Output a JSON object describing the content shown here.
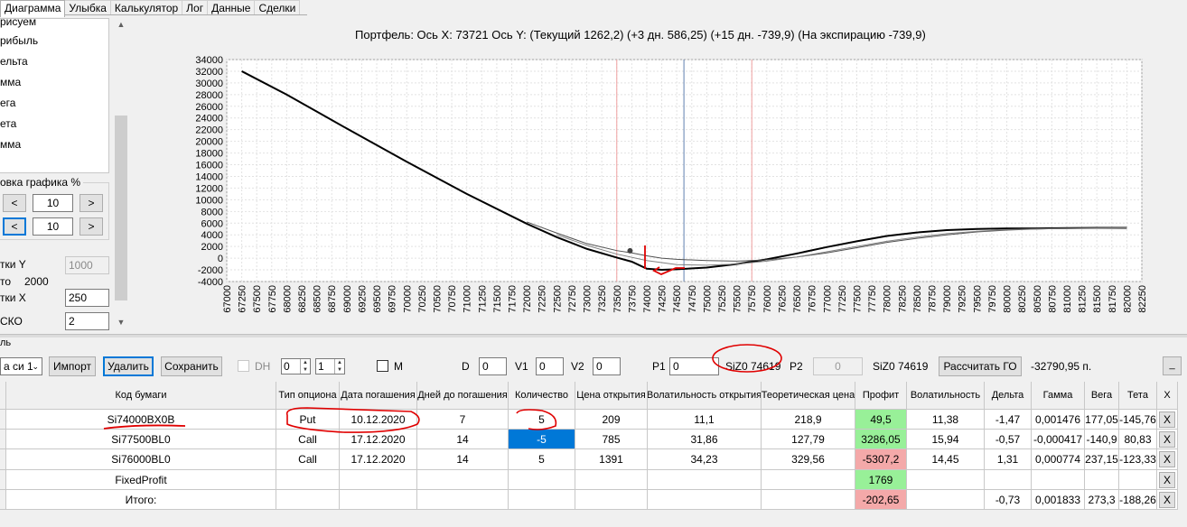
{
  "tabs": [
    "Диаграмма",
    "Улыбка",
    "Калькулятор",
    "Лог",
    "Данные",
    "Сделки"
  ],
  "active_tab": "Диаграмма",
  "left_panel": {
    "series_items": [
      "рисуем",
      "рибыль",
      "ельта",
      "мма",
      "ега",
      "ета",
      "мма"
    ],
    "scale_group_title": "овка графика %",
    "scale_prev": "<",
    "scale_next": ">",
    "scale_value_1": "10",
    "scale_value_2": "10",
    "y_step_label": "тки Y",
    "y_step_value": "1000",
    "from_label": "то",
    "from_value": "2000",
    "x_step_label": "тки X",
    "x_step_value": "250",
    "sko_label": "СКО",
    "sko_value": "2"
  },
  "chart_title": "Портфель: Ось X: 73721 Ось Y:  (Текущий 1262,2)  (+3 дн. 586,25)  (+15 дн. -739,9)  (На экспирацию -739,9)",
  "chart_data": {
    "type": "line",
    "xlim": [
      67000,
      82250
    ],
    "ylim": [
      -4000,
      34000
    ],
    "y_ticks": [
      -4000,
      -2000,
      0,
      2000,
      4000,
      6000,
      8000,
      10000,
      12000,
      14000,
      16000,
      18000,
      20000,
      22000,
      24000,
      26000,
      28000,
      30000,
      32000,
      34000
    ],
    "x_ticks": [
      67000,
      67250,
      67500,
      67750,
      68000,
      68250,
      68500,
      68750,
      69000,
      69250,
      69500,
      69750,
      70000,
      70250,
      70500,
      70750,
      71000,
      71250,
      71500,
      71750,
      72000,
      72250,
      72500,
      72750,
      73000,
      73250,
      73500,
      73750,
      74000,
      74250,
      74500,
      74750,
      75000,
      75250,
      75500,
      75750,
      76000,
      76250,
      76500,
      76750,
      77000,
      77250,
      77500,
      77750,
      78000,
      78250,
      78500,
      78750,
      79000,
      79250,
      79500,
      79750,
      80000,
      80250,
      80500,
      80750,
      81000,
      81250,
      81500,
      81750,
      82000,
      82250
    ],
    "grid": true,
    "vertical_markers": [
      {
        "x": 73500,
        "color": "#f0a0a0"
      },
      {
        "x": 74619,
        "color": "#6080b0"
      },
      {
        "x": 75750,
        "color": "#f0a0a0"
      }
    ],
    "current_point": {
      "x": 73721,
      "y": 1262
    },
    "series": [
      {
        "color": "#000000",
        "x": [
          67250,
          68000,
          69000,
          70000,
          71000,
          72000,
          72500,
          73000,
          73500,
          73750,
          74000,
          74250,
          74500,
          75000,
          75500,
          76000,
          76500,
          77000,
          77500,
          78000,
          78500,
          79000,
          79500,
          80000,
          80500,
          81000,
          81500,
          82000
        ],
        "y": [
          32000,
          28000,
          22200,
          16500,
          11000,
          5900,
          3600,
          1600,
          100,
          -600,
          -1800,
          -2000,
          -1900,
          -1600,
          -1000,
          -200,
          800,
          1900,
          2900,
          3800,
          4400,
          4800,
          5000,
          5100,
          5100,
          5150,
          5200,
          5200
        ]
      },
      {
        "color": "#505050",
        "x": [
          72000,
          72500,
          73000,
          73500,
          73750,
          74000,
          74250,
          74500,
          75000,
          75500,
          76000,
          76500,
          77000,
          77500,
          78000,
          78500,
          79000,
          79500,
          80000,
          80500,
          81000,
          81500,
          82000
        ],
        "y": [
          6200,
          4300,
          2500,
          1300,
          900,
          400,
          0,
          -200,
          -400,
          -500,
          -300,
          200,
          900,
          1800,
          2700,
          3400,
          4000,
          4500,
          4800,
          5000,
          5100,
          5150,
          5200
        ]
      },
      {
        "color": "#808080",
        "x": [
          72500,
          73000,
          73500,
          74000,
          74500,
          75000,
          75500,
          76000,
          76500,
          77000,
          77500,
          78000,
          78500,
          79000,
          79500,
          80000,
          80500,
          81000,
          81500,
          82000
        ],
        "y": [
          4000,
          2200,
          700,
          -400,
          -1100,
          -1200,
          -1000,
          -500,
          200,
          1100,
          2000,
          2900,
          3600,
          4200,
          4600,
          4900,
          5000,
          5100,
          5150,
          5200
        ]
      }
    ]
  },
  "toolbar": {
    "series_select": "а си 1",
    "import": "Импорт",
    "delete": "Удалить",
    "save": "Сохранить",
    "dh_label": "DH",
    "spin1_value": "0",
    "spin2_value": "1",
    "m_label": "M",
    "d_label": "D",
    "d_value": "0",
    "v1_label": "V1",
    "v1_value": "0",
    "v2_label": "V2",
    "v2_value": "0",
    "p1_label": "P1",
    "p1_value": "0",
    "p1_instrument": "SiZ0 74619",
    "p2_label": "P2",
    "p2_value": "0",
    "p2_instrument": "SiZ0 74619",
    "calc_go": "Рассчитать ГО",
    "go_value": "-32790,95 п.",
    "minimize": "_"
  },
  "bottom_group_label": "ль",
  "table": {
    "headers": [
      "Код бумаги",
      "Тип опциона",
      "Дата погашения",
      "Дней до погашения",
      "Количество",
      "Цена открытия",
      "Волатильность открытия",
      "Теоретическая цена",
      "Профит",
      "Волатильность",
      "Дельта",
      "Гамма",
      "Вега",
      "Тета",
      "X"
    ],
    "rows": [
      [
        "Si74000BX0B",
        "Put",
        "10.12.2020",
        "7",
        "5",
        "209",
        "11,1",
        "218,9",
        "49,5",
        "11,38",
        "-1,47",
        "0,001476",
        "177,05",
        "-145,76",
        "X"
      ],
      [
        "Si77500BL0",
        "Call",
        "17.12.2020",
        "14",
        "-5",
        "785",
        "31,86",
        "127,79",
        "3286,05",
        "15,94",
        "-0,57",
        "-0,000417",
        "-140,9",
        "80,83",
        "X"
      ],
      [
        "Si76000BL0",
        "Call",
        "17.12.2020",
        "14",
        "5",
        "1391",
        "34,23",
        "329,56",
        "-5307,2",
        "14,45",
        "1,31",
        "0,000774",
        "237,15",
        "-123,33",
        "X"
      ],
      [
        "FixedProfit",
        "",
        "",
        "",
        "",
        "",
        "",
        "",
        "1769",
        "",
        "",
        "",
        "",
        "",
        "X"
      ],
      [
        "Итого:",
        "",
        "",
        "",
        "",
        "",
        "",
        "",
        "-202,65",
        "",
        "-0,73",
        "0,001833",
        "273,3",
        "-188,26",
        "X"
      ]
    ],
    "profit_colors": [
      "#98f098",
      "#98f098",
      "#f4a9a9",
      "#98f098",
      "#f4a9a9"
    ]
  }
}
